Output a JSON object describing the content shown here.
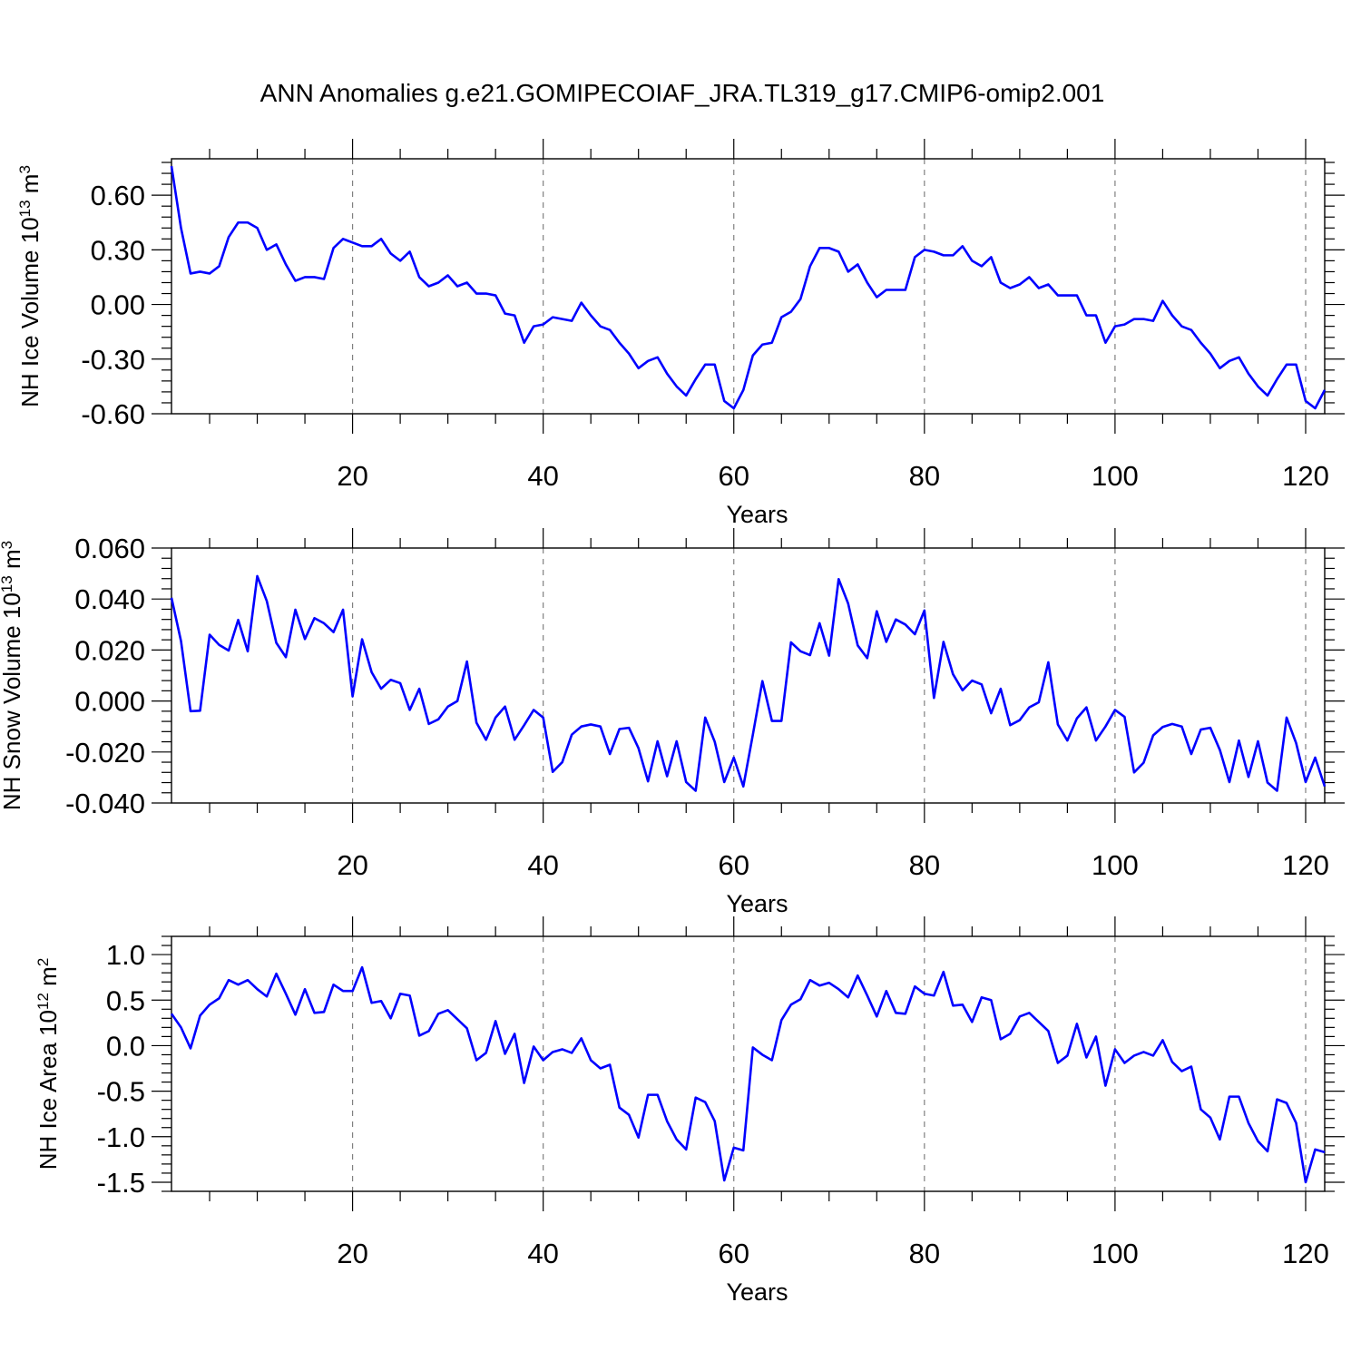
{
  "title": "ANN Anomalies g.e21.GOMIPECOIAF_JRA.TL319_g17.CMIP6-omip2.001",
  "colors": {
    "series": "#0000ff",
    "axis": "#000000",
    "grid": "#808080"
  },
  "chart_data": [
    {
      "type": "line",
      "ylabel": {
        "text": "NH Ice Volume 10",
        "exponent": "13",
        "unit": " m",
        "unit_exponent": "3"
      },
      "xlabel": "Years",
      "xlim": [
        1,
        122
      ],
      "ylim": [
        -0.6,
        0.8
      ],
      "ytick_values": [
        -0.6,
        -0.3,
        0.0,
        0.3,
        0.6
      ],
      "ytick_labels": [
        "-0.60",
        "-0.30",
        "0.00",
        "0.30",
        "0.60"
      ],
      "xtick_values": [
        20,
        40,
        60,
        80,
        100,
        120
      ],
      "xtick_labels": [
        "20",
        "40",
        "60",
        "80",
        "100",
        "120"
      ],
      "values": [
        0.76,
        0.42,
        0.17,
        0.18,
        0.17,
        0.21,
        0.37,
        0.45,
        0.45,
        0.42,
        0.3,
        0.33,
        0.22,
        0.13,
        0.15,
        0.15,
        0.14,
        0.31,
        0.36,
        0.34,
        0.32,
        0.32,
        0.36,
        0.28,
        0.24,
        0.29,
        0.15,
        0.1,
        0.12,
        0.16,
        0.1,
        0.12,
        0.06,
        0.06,
        0.05,
        -0.05,
        -0.06,
        -0.21,
        -0.12,
        -0.11,
        -0.07,
        -0.08,
        -0.09,
        0.01,
        -0.06,
        -0.12,
        -0.14,
        -0.21,
        -0.27,
        -0.35,
        -0.31,
        -0.29,
        -0.38,
        -0.45,
        -0.5,
        -0.41,
        -0.33,
        -0.33,
        -0.53,
        -0.57,
        -0.47,
        -0.28,
        -0.22,
        -0.21,
        -0.07,
        -0.04,
        0.03,
        0.21,
        0.31,
        0.31,
        0.29,
        0.18,
        0.22,
        0.12,
        0.04,
        0.08,
        0.08,
        0.08,
        0.26,
        0.3,
        0.29,
        0.27,
        0.27,
        0.32,
        0.24,
        0.21,
        0.26,
        0.12,
        0.09,
        0.11,
        0.15,
        0.09,
        0.11,
        0.05,
        0.05,
        0.05,
        -0.06,
        -0.06,
        -0.21,
        -0.12,
        -0.11,
        -0.08,
        -0.08,
        -0.09,
        0.02,
        -0.06,
        -0.12,
        -0.14,
        -0.21,
        -0.27,
        -0.35,
        -0.31,
        -0.29,
        -0.38,
        -0.45,
        -0.5,
        -0.41,
        -0.33,
        -0.33,
        -0.53,
        -0.57,
        -0.47
      ]
    },
    {
      "type": "line",
      "ylabel": {
        "text": "NH Snow Volume 10",
        "exponent": "13",
        "unit": " m",
        "unit_exponent": "3"
      },
      "xlabel": "Years",
      "xlim": [
        1,
        122
      ],
      "ylim": [
        -0.04,
        0.06
      ],
      "ytick_values": [
        -0.04,
        -0.02,
        0.0,
        0.02,
        0.04,
        0.06
      ],
      "ytick_labels": [
        "-0.040",
        "-0.020",
        "0.000",
        "0.020",
        "0.040",
        "0.060"
      ],
      "xtick_values": [
        20,
        40,
        60,
        80,
        100,
        120
      ],
      "xtick_labels": [
        "20",
        "40",
        "60",
        "80",
        "100",
        "120"
      ],
      "values": [
        0.0405,
        0.0235,
        -0.004,
        -0.0038,
        0.026,
        0.022,
        0.0198,
        0.0318,
        0.0195,
        0.049,
        0.0392,
        0.0228,
        0.0172,
        0.0358,
        0.0243,
        0.0325,
        0.0305,
        0.027,
        0.0358,
        0.0018,
        0.0242,
        0.0113,
        0.0048,
        0.0083,
        0.007,
        -0.0035,
        0.0048,
        -0.009,
        -0.0072,
        -0.0022,
        0.0,
        0.0155,
        -0.0085,
        -0.0152,
        -0.0065,
        -0.0022,
        -0.0152,
        -0.0095,
        -0.0035,
        -0.0065,
        -0.0278,
        -0.024,
        -0.0132,
        -0.01,
        -0.0092,
        -0.01,
        -0.0208,
        -0.011,
        -0.0105,
        -0.0185,
        -0.0315,
        -0.0158,
        -0.0295,
        -0.0158,
        -0.0318,
        -0.0352,
        -0.0065,
        -0.016,
        -0.0318,
        -0.0222,
        -0.0335,
        -0.0132,
        0.0078,
        -0.0078,
        -0.0078,
        0.023,
        0.0195,
        0.018,
        0.0305,
        0.0178,
        0.0478,
        0.0382,
        0.0218,
        0.0168,
        0.0352,
        0.0232,
        0.032,
        0.03,
        0.0262,
        0.0355,
        0.0012,
        0.0232,
        0.0105,
        0.0042,
        0.008,
        0.0065,
        -0.0048,
        0.0048,
        -0.0095,
        -0.0075,
        -0.0025,
        -0.0005,
        0.0152,
        -0.0092,
        -0.0155,
        -0.0068,
        -0.0025,
        -0.0155,
        -0.01,
        -0.0035,
        -0.0062,
        -0.028,
        -0.0242,
        -0.0135,
        -0.0102,
        -0.009,
        -0.01,
        -0.0208,
        -0.0112,
        -0.0105,
        -0.0192,
        -0.0318,
        -0.0155,
        -0.0298,
        -0.0158,
        -0.032,
        -0.0352,
        -0.0065,
        -0.0165,
        -0.0318,
        -0.0222,
        -0.0335
      ]
    },
    {
      "type": "line",
      "ylabel": {
        "text": "NH Ice Area 10",
        "exponent": "12",
        "unit": " m",
        "unit_exponent": "2"
      },
      "xlabel": "Years",
      "xlim": [
        1,
        122
      ],
      "ylim": [
        -1.6,
        1.2
      ],
      "ytick_values": [
        -1.5,
        -1.0,
        -0.5,
        0.0,
        0.5,
        1.0
      ],
      "ytick_labels": [
        "-1.5",
        "-1.0",
        "-0.5",
        "0.0",
        "0.5",
        "1.0"
      ],
      "xtick_values": [
        20,
        40,
        60,
        80,
        100,
        120
      ],
      "xtick_labels": [
        "20",
        "40",
        "60",
        "80",
        "100",
        "120"
      ],
      "values": [
        0.35,
        0.2,
        -0.03,
        0.33,
        0.45,
        0.52,
        0.72,
        0.67,
        0.72,
        0.62,
        0.54,
        0.79,
        0.57,
        0.34,
        0.62,
        0.36,
        0.37,
        0.67,
        0.6,
        0.6,
        0.86,
        0.47,
        0.49,
        0.3,
        0.57,
        0.55,
        0.11,
        0.16,
        0.35,
        0.39,
        0.29,
        0.19,
        -0.16,
        -0.08,
        0.27,
        -0.09,
        0.13,
        -0.41,
        -0.01,
        -0.16,
        -0.07,
        -0.04,
        -0.08,
        0.08,
        -0.16,
        -0.25,
        -0.21,
        -0.68,
        -0.76,
        -1.01,
        -0.54,
        -0.54,
        -0.83,
        -1.03,
        -1.14,
        -0.57,
        -0.62,
        -0.83,
        -1.48,
        -1.12,
        -1.15,
        -0.02,
        -0.1,
        -0.16,
        0.28,
        0.45,
        0.51,
        0.72,
        0.66,
        0.69,
        0.62,
        0.53,
        0.77,
        0.55,
        0.32,
        0.6,
        0.36,
        0.35,
        0.65,
        0.57,
        0.55,
        0.81,
        0.44,
        0.45,
        0.26,
        0.53,
        0.5,
        0.07,
        0.13,
        0.32,
        0.36,
        0.26,
        0.16,
        -0.19,
        -0.11,
        0.24,
        -0.13,
        0.1,
        -0.44,
        -0.04,
        -0.19,
        -0.11,
        -0.07,
        -0.11,
        0.06,
        -0.18,
        -0.28,
        -0.23,
        -0.7,
        -0.79,
        -1.03,
        -0.56,
        -0.56,
        -0.85,
        -1.05,
        -1.16,
        -0.59,
        -0.63,
        -0.85,
        -1.5,
        -1.14,
        -1.17
      ]
    }
  ]
}
